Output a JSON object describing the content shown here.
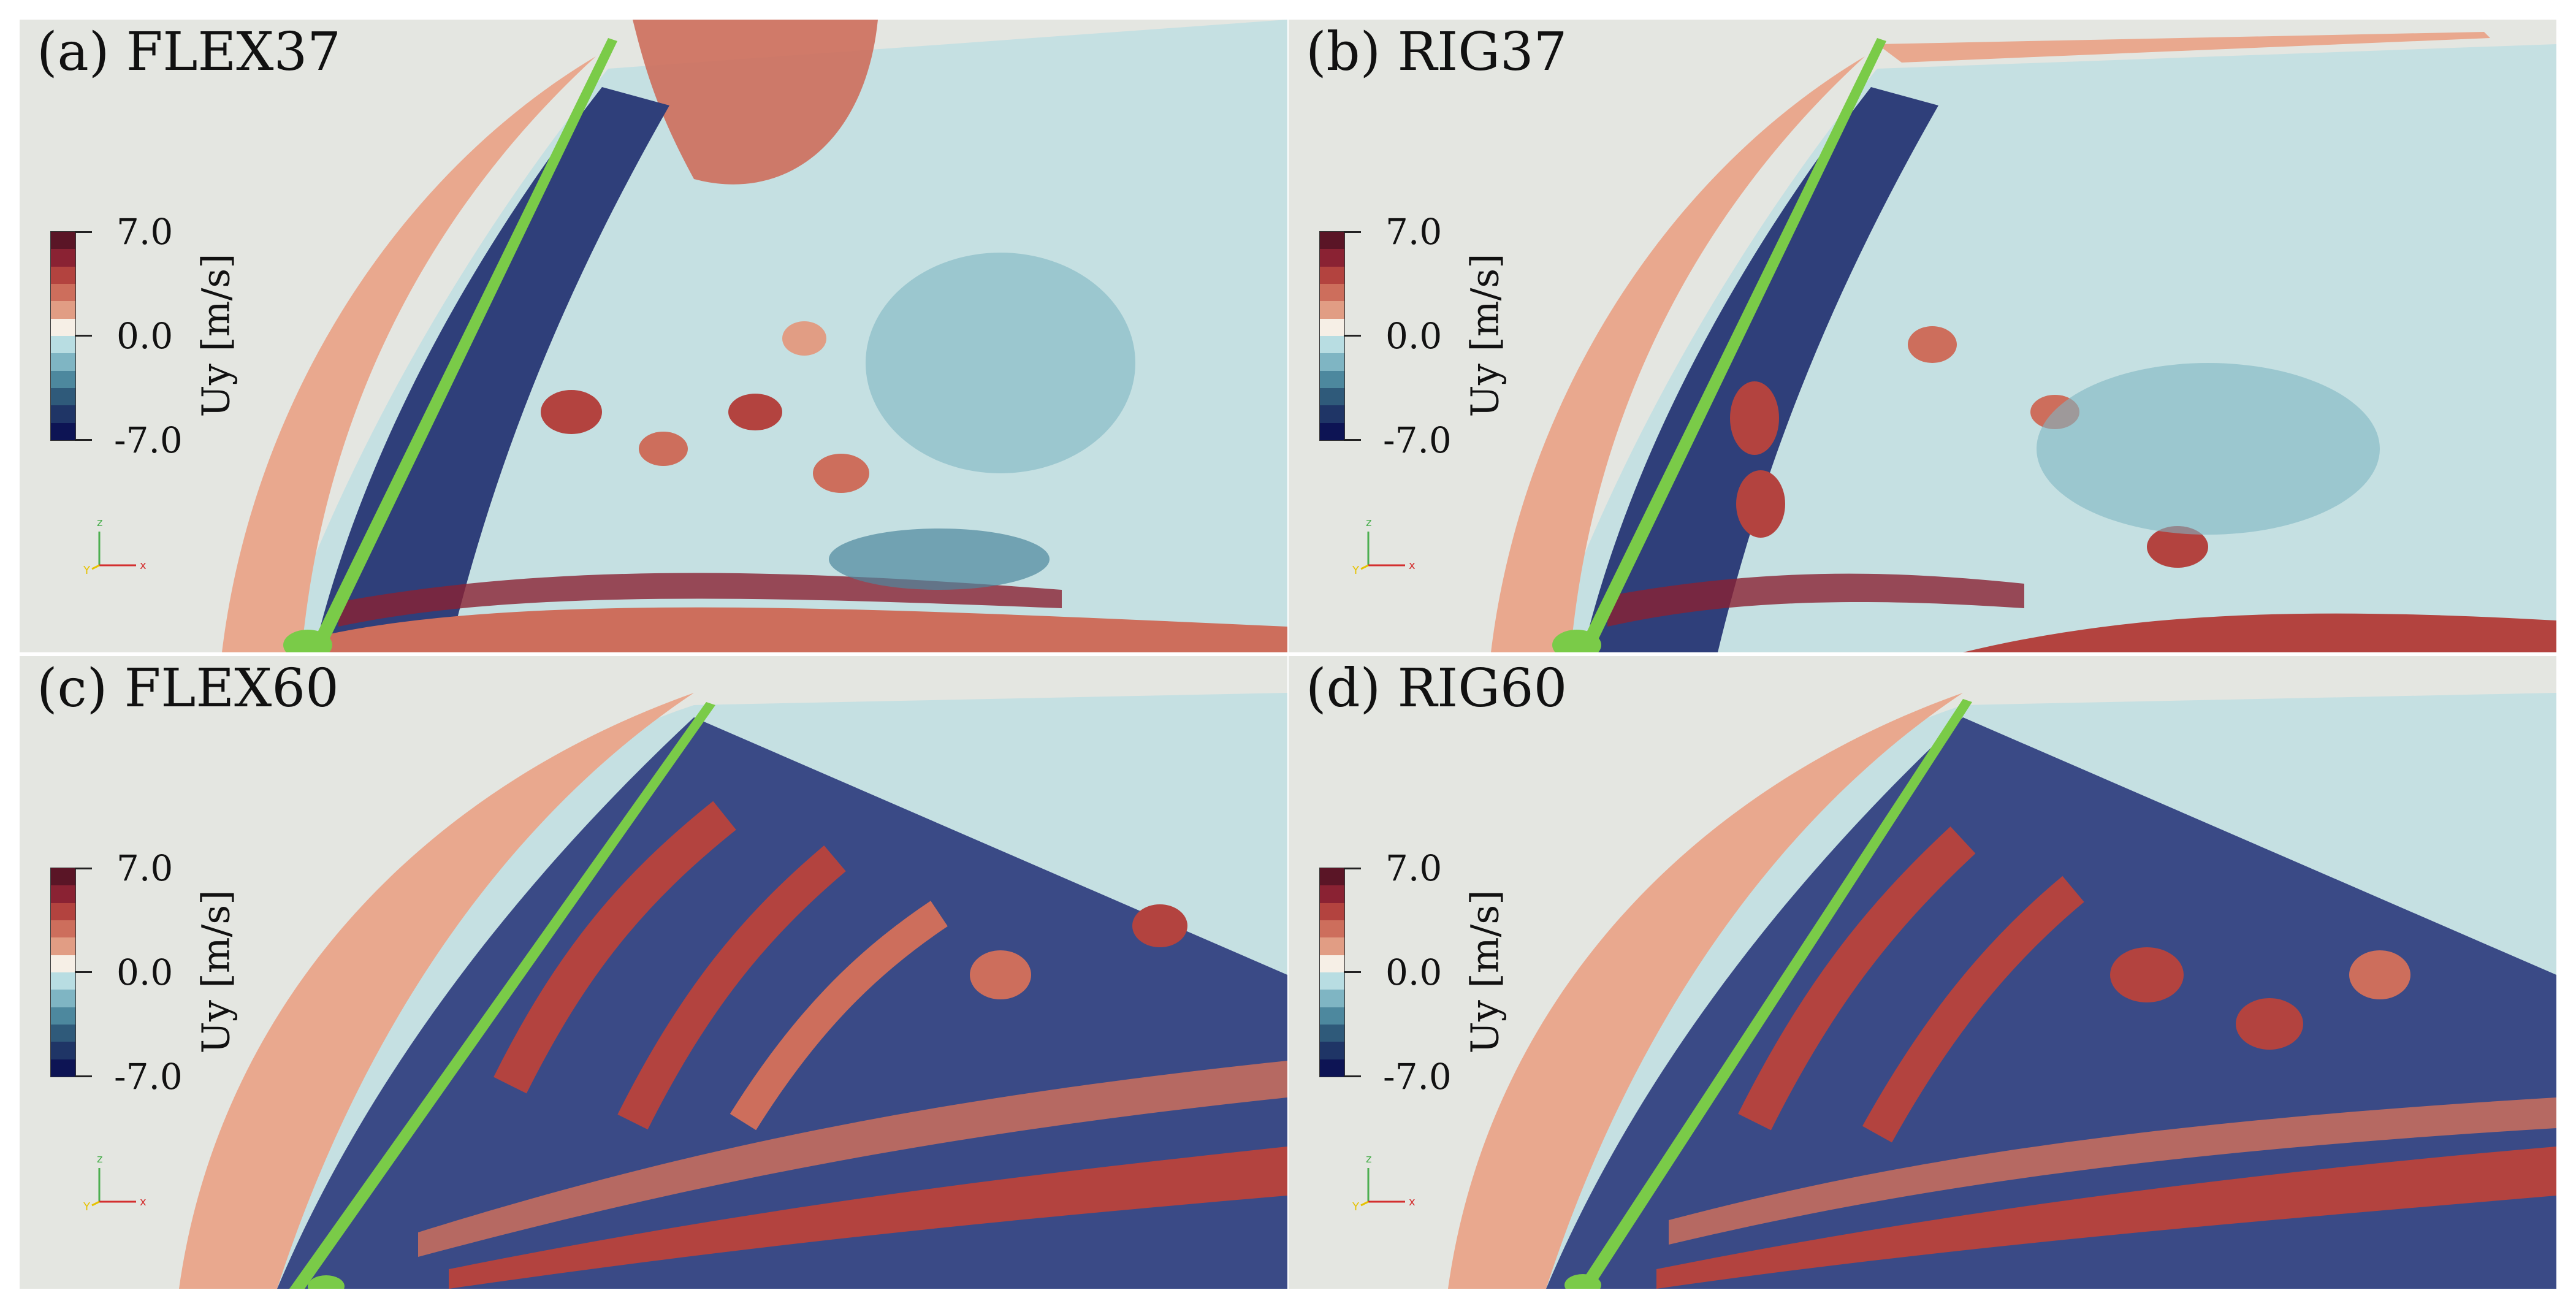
{
  "figure": {
    "panels": [
      {
        "label": "(a) FLEX37",
        "case": "FLEX37"
      },
      {
        "label": "(b) RIG37",
        "case": "RIG37"
      },
      {
        "label": "(c) FLEX60",
        "case": "FLEX60"
      },
      {
        "label": "(d) RIG60",
        "case": "RIG60"
      }
    ],
    "colorbar": {
      "title": "Uy [m/s]",
      "max_label": "7.0",
      "mid_label": "0.0",
      "min_label": "-7.0",
      "colors": [
        "#5a1526",
        "#8a2233",
        "#b3433f",
        "#cd6e5c",
        "#e19d84",
        "#f6efe6",
        "#b8dde2",
        "#7fb5c3",
        "#4d889e",
        "#2f5a7a",
        "#1f3566",
        "#0d1454"
      ]
    },
    "axes_triad": {
      "z": "z",
      "y": "Y",
      "x": "x"
    }
  }
}
